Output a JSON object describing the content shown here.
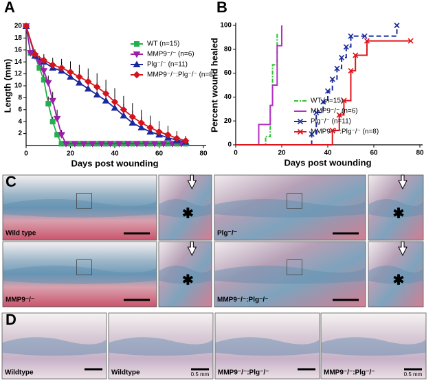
{
  "chart_data": [
    {
      "type": "line",
      "panel": "A",
      "xlabel": "Days post wounding",
      "ylabel": "Length (mm)",
      "xlim": [
        0,
        80
      ],
      "xticks": [
        0,
        20,
        40,
        60,
        80
      ],
      "ylim": [
        0,
        20
      ],
      "yticks": [
        2,
        4,
        6,
        8,
        10,
        12,
        14,
        16,
        18,
        20
      ],
      "series": [
        {
          "name": "WT (n=15)",
          "color": "#22b04b",
          "marker": "square",
          "x": [
            0,
            2,
            4,
            6,
            8,
            10,
            12,
            14,
            16,
            20,
            24,
            28,
            32,
            36,
            40,
            44,
            48,
            52,
            56,
            60,
            64,
            68,
            72
          ],
          "values": [
            20,
            15.5,
            15,
            13,
            11,
            7,
            4,
            1.8,
            0.3,
            0.3,
            0.3,
            0.3,
            0.3,
            0.3,
            0.3,
            0.3,
            0.3,
            0.3,
            0.3,
            0.3,
            0.3,
            0.3,
            0.3
          ],
          "errors": [
            0.5,
            0.5,
            0.6,
            0.8,
            1,
            1.2,
            0.8,
            0.5,
            0.2,
            0,
            0,
            0,
            0,
            0,
            0,
            0,
            0,
            0,
            0,
            0,
            0,
            0,
            0
          ]
        },
        {
          "name": "MMP9⁻/⁻ (n=6)",
          "color": "#9b1fa8",
          "marker": "triangle-down",
          "x": [
            0,
            2,
            4,
            6,
            8,
            10,
            12,
            14,
            16,
            18,
            22,
            26,
            30,
            34,
            38,
            42,
            46,
            50,
            54,
            58,
            62,
            66,
            70
          ],
          "values": [
            20,
            15.5,
            15,
            14,
            12.5,
            10.5,
            7.5,
            4.5,
            1.8,
            0.3,
            0.3,
            0.3,
            0.3,
            0.3,
            0.3,
            0.3,
            0.3,
            0.3,
            0.3,
            0.3,
            0.3,
            0.3,
            0.3
          ],
          "errors": [
            0.5,
            0.5,
            0.8,
            1,
            1,
            1.2,
            1.5,
            1.5,
            0.8,
            0.2,
            0,
            0,
            0,
            0,
            0,
            0,
            0,
            0,
            0,
            0,
            0,
            0,
            0
          ]
        },
        {
          "name": "Plg⁻/⁻ (n=11)",
          "color": "#1a2a9c",
          "marker": "triangle",
          "x": [
            0,
            4,
            8,
            12,
            16,
            20,
            24,
            28,
            32,
            36,
            40,
            44,
            48,
            52,
            56,
            60,
            64,
            68,
            72
          ],
          "values": [
            20,
            15,
            14,
            13,
            12.5,
            11.5,
            10.5,
            9.5,
            8.5,
            7.5,
            6.3,
            5,
            3.8,
            3,
            2.3,
            1.8,
            1.3,
            0.9,
            0.6
          ],
          "errors": [
            0.5,
            0.8,
            1,
            1.2,
            1.5,
            1.8,
            2,
            2,
            2,
            2,
            2,
            2,
            2,
            1.8,
            1.5,
            1.2,
            1,
            0.8,
            0.5
          ]
        },
        {
          "name": "MMP9⁻/⁻:Plg⁻/⁻ (n=8)",
          "color": "#d4141c",
          "marker": "diamond",
          "x": [
            0,
            4,
            8,
            12,
            16,
            20,
            24,
            28,
            32,
            36,
            40,
            44,
            48,
            52,
            56,
            60,
            64,
            68,
            72
          ],
          "values": [
            20,
            15.3,
            14.3,
            13.5,
            13,
            12.3,
            11.5,
            10.7,
            9.8,
            8.7,
            7.3,
            6,
            4.8,
            3.8,
            3,
            2.3,
            1.8,
            1.2,
            0.8
          ],
          "errors": [
            0.5,
            0.8,
            1,
            1.2,
            1.5,
            1.8,
            2,
            2.2,
            2.3,
            2.3,
            2.3,
            2.3,
            2.3,
            2.2,
            2,
            1.8,
            1.5,
            1.2,
            0.8
          ]
        }
      ]
    },
    {
      "type": "step",
      "panel": "B",
      "xlabel": "Days post wounding",
      "ylabel": "Percent wound healed",
      "xlim": [
        0,
        80
      ],
      "xticks": [
        0,
        20,
        40,
        60,
        80
      ],
      "ylim": [
        0,
        100
      ],
      "yticks": [
        0,
        20,
        40,
        60,
        80,
        100
      ],
      "series": [
        {
          "name": "WT (n=15)",
          "color": "#2fc02f",
          "dash": "6 2 2 2",
          "x": [
            0,
            13,
            15,
            16,
            18
          ],
          "values": [
            0,
            7,
            33,
            67,
            93
          ]
        },
        {
          "name": "MMP9⁻/⁻ (n=6)",
          "color": "#b030c0",
          "x": [
            0,
            10,
            15,
            16,
            18,
            20
          ],
          "values": [
            0,
            17,
            33,
            50,
            83,
            100
          ]
        },
        {
          "name": "Plg⁻/⁻ (n=11)",
          "color": "#1a2a9c",
          "dash": "7 4",
          "marker": "cross",
          "x": [
            0,
            33,
            35,
            38,
            40,
            42,
            44,
            46,
            48,
            50,
            56,
            70
          ],
          "values": [
            0,
            9,
            27,
            36,
            45,
            55,
            64,
            73,
            82,
            91,
            91,
            100
          ]
        },
        {
          "name": "MMP9⁻/⁻:Plg⁻/⁻ (n=8)",
          "color": "#e0141c",
          "marker": "cross",
          "x": [
            0,
            42,
            45,
            47,
            50,
            52,
            57,
            76
          ],
          "values": [
            0,
            12,
            25,
            37,
            62,
            75,
            87,
            87
          ]
        }
      ]
    }
  ],
  "histology": {
    "C": {
      "panel": "C",
      "labels": [
        "Wild type",
        "Plg⁻/⁻",
        "MMP9⁻/⁻",
        "MMP9⁻/⁻:Plg⁻/⁻"
      ]
    },
    "D": {
      "panel": "D",
      "labels": [
        "Wildtype",
        "Wildtype",
        "MMP9⁻/⁻:Plg⁻/⁻",
        "MMP9⁻/⁻:Plg⁻/⁻"
      ],
      "scale_labels": [
        "0.5 mm",
        "0.5 mm"
      ]
    }
  }
}
